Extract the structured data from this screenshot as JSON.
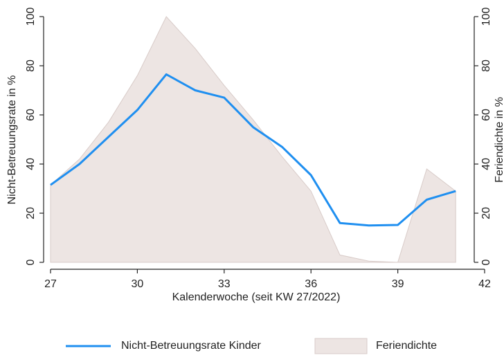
{
  "chart_data": {
    "type": "line",
    "x_label": "Kalenderwoche (seit KW 27/2022)",
    "y_label": "Nicht-Betreuungsrate in %",
    "y2_label": "Feriendichte in %",
    "x": [
      27,
      28,
      29,
      30,
      31,
      32,
      33,
      34,
      35,
      36,
      37,
      38,
      39,
      40,
      41
    ],
    "series": [
      {
        "name": "Nicht-Betreuungsrate Kinder",
        "color": "#1f8ff0",
        "kind": "line",
        "values": [
          31.5,
          40,
          51,
          62,
          76.5,
          70,
          67,
          55,
          47,
          35.5,
          16,
          15,
          15.2,
          25.5,
          29
        ]
      },
      {
        "name": "Feriendichte",
        "color": "#ede5e3",
        "kind": "area",
        "axis": "y2",
        "values": [
          31.5,
          42,
          57,
          76,
          100,
          87,
          72,
          58,
          43,
          29,
          3,
          0.5,
          0,
          38,
          29
        ]
      }
    ],
    "xlim": [
      27,
      42
    ],
    "xticks": [
      27,
      30,
      33,
      36,
      39,
      42
    ],
    "ylim": [
      0,
      100
    ],
    "yticks": [
      0,
      20,
      40,
      60,
      80,
      100
    ],
    "y2lim": [
      0,
      100
    ],
    "y2ticks": [
      0,
      20,
      40,
      60,
      80,
      100
    ],
    "grid": false,
    "legend": "bottom"
  }
}
